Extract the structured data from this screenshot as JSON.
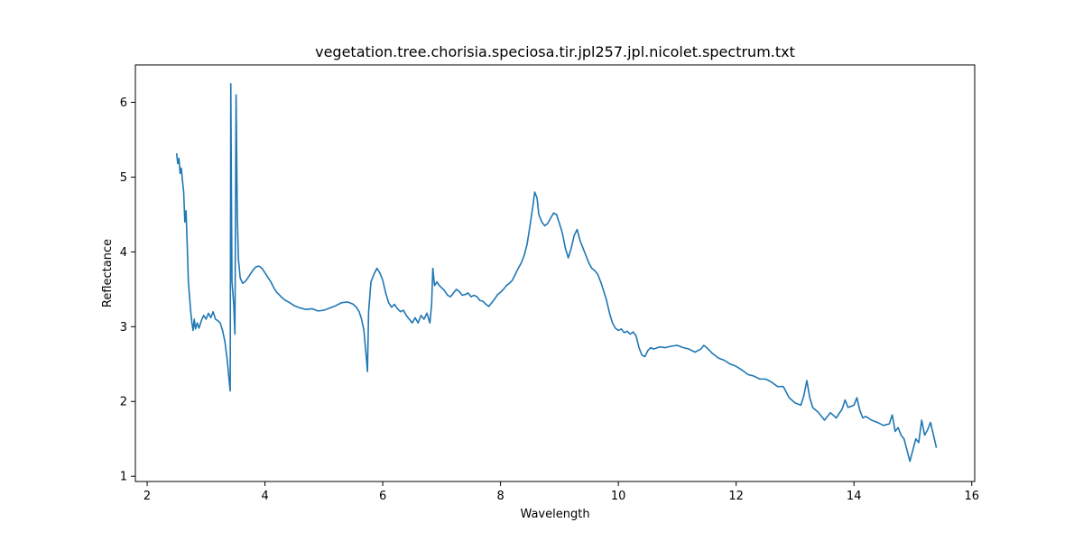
{
  "chart_data": {
    "type": "line",
    "title": "vegetation.tree.chorisia.speciosa.tir.jpl257.jpl.nicolet.spectrum.txt",
    "xlabel": "Wavelength",
    "ylabel": "Reflectance",
    "xlim": [
      1.8,
      16.05
    ],
    "ylim": [
      0.93,
      6.5
    ],
    "x_ticks": [
      2,
      4,
      6,
      8,
      10,
      12,
      14,
      16
    ],
    "y_ticks": [
      1,
      2,
      3,
      4,
      5,
      6
    ],
    "grid": false,
    "line_color": "#1f77b4",
    "series": [
      {
        "points": [
          [
            2.5,
            5.32
          ],
          [
            2.52,
            5.18
          ],
          [
            2.54,
            5.25
          ],
          [
            2.56,
            5.05
          ],
          [
            2.58,
            5.12
          ],
          [
            2.6,
            4.95
          ],
          [
            2.62,
            4.8
          ],
          [
            2.64,
            4.4
          ],
          [
            2.66,
            4.55
          ],
          [
            2.68,
            4.1
          ],
          [
            2.7,
            3.6
          ],
          [
            2.72,
            3.4
          ],
          [
            2.74,
            3.2
          ],
          [
            2.76,
            3.05
          ],
          [
            2.78,
            2.95
          ],
          [
            2.8,
            3.1
          ],
          [
            2.82,
            2.97
          ],
          [
            2.85,
            3.05
          ],
          [
            2.88,
            2.98
          ],
          [
            2.92,
            3.08
          ],
          [
            2.96,
            3.15
          ],
          [
            3.0,
            3.1
          ],
          [
            3.04,
            3.18
          ],
          [
            3.08,
            3.12
          ],
          [
            3.12,
            3.2
          ],
          [
            3.16,
            3.1
          ],
          [
            3.2,
            3.08
          ],
          [
            3.24,
            3.05
          ],
          [
            3.28,
            2.95
          ],
          [
            3.32,
            2.8
          ],
          [
            3.36,
            2.55
          ],
          [
            3.39,
            2.3
          ],
          [
            3.41,
            2.14
          ],
          [
            3.42,
            6.25
          ],
          [
            3.44,
            3.6
          ],
          [
            3.47,
            3.3
          ],
          [
            3.49,
            2.9
          ],
          [
            3.51,
            6.1
          ],
          [
            3.53,
            4.5
          ],
          [
            3.55,
            3.9
          ],
          [
            3.58,
            3.65
          ],
          [
            3.62,
            3.58
          ],
          [
            3.66,
            3.6
          ],
          [
            3.7,
            3.64
          ],
          [
            3.75,
            3.7
          ],
          [
            3.8,
            3.76
          ],
          [
            3.85,
            3.8
          ],
          [
            3.9,
            3.81
          ],
          [
            3.95,
            3.78
          ],
          [
            4.0,
            3.72
          ],
          [
            4.05,
            3.66
          ],
          [
            4.1,
            3.6
          ],
          [
            4.15,
            3.52
          ],
          [
            4.2,
            3.46
          ],
          [
            4.25,
            3.42
          ],
          [
            4.3,
            3.38
          ],
          [
            4.35,
            3.35
          ],
          [
            4.4,
            3.33
          ],
          [
            4.5,
            3.28
          ],
          [
            4.6,
            3.25
          ],
          [
            4.7,
            3.23
          ],
          [
            4.8,
            3.24
          ],
          [
            4.9,
            3.21
          ],
          [
            5.0,
            3.22
          ],
          [
            5.1,
            3.25
          ],
          [
            5.2,
            3.28
          ],
          [
            5.3,
            3.32
          ],
          [
            5.4,
            3.33
          ],
          [
            5.5,
            3.3
          ],
          [
            5.55,
            3.26
          ],
          [
            5.6,
            3.2
          ],
          [
            5.64,
            3.1
          ],
          [
            5.68,
            2.95
          ],
          [
            5.72,
            2.6
          ],
          [
            5.74,
            2.4
          ],
          [
            5.76,
            3.2
          ],
          [
            5.8,
            3.6
          ],
          [
            5.85,
            3.7
          ],
          [
            5.9,
            3.78
          ],
          [
            5.95,
            3.72
          ],
          [
            6.0,
            3.62
          ],
          [
            6.05,
            3.45
          ],
          [
            6.1,
            3.32
          ],
          [
            6.15,
            3.26
          ],
          [
            6.2,
            3.3
          ],
          [
            6.25,
            3.24
          ],
          [
            6.3,
            3.2
          ],
          [
            6.35,
            3.22
          ],
          [
            6.4,
            3.15
          ],
          [
            6.45,
            3.1
          ],
          [
            6.5,
            3.05
          ],
          [
            6.55,
            3.12
          ],
          [
            6.6,
            3.05
          ],
          [
            6.65,
            3.15
          ],
          [
            6.7,
            3.1
          ],
          [
            6.75,
            3.18
          ],
          [
            6.8,
            3.05
          ],
          [
            6.83,
            3.3
          ],
          [
            6.85,
            3.78
          ],
          [
            6.88,
            3.55
          ],
          [
            6.92,
            3.6
          ],
          [
            6.96,
            3.55
          ],
          [
            7.0,
            3.52
          ],
          [
            7.05,
            3.48
          ],
          [
            7.1,
            3.42
          ],
          [
            7.15,
            3.4
          ],
          [
            7.2,
            3.45
          ],
          [
            7.25,
            3.5
          ],
          [
            7.3,
            3.47
          ],
          [
            7.35,
            3.42
          ],
          [
            7.4,
            3.43
          ],
          [
            7.45,
            3.45
          ],
          [
            7.5,
            3.4
          ],
          [
            7.55,
            3.42
          ],
          [
            7.6,
            3.4
          ],
          [
            7.65,
            3.35
          ],
          [
            7.7,
            3.34
          ],
          [
            7.75,
            3.3
          ],
          [
            7.8,
            3.27
          ],
          [
            7.85,
            3.32
          ],
          [
            7.9,
            3.37
          ],
          [
            7.95,
            3.43
          ],
          [
            8.0,
            3.46
          ],
          [
            8.05,
            3.5
          ],
          [
            8.1,
            3.55
          ],
          [
            8.15,
            3.58
          ],
          [
            8.2,
            3.62
          ],
          [
            8.25,
            3.7
          ],
          [
            8.3,
            3.78
          ],
          [
            8.35,
            3.85
          ],
          [
            8.4,
            3.95
          ],
          [
            8.45,
            4.1
          ],
          [
            8.5,
            4.35
          ],
          [
            8.55,
            4.62
          ],
          [
            8.58,
            4.8
          ],
          [
            8.62,
            4.72
          ],
          [
            8.65,
            4.5
          ],
          [
            8.7,
            4.4
          ],
          [
            8.75,
            4.35
          ],
          [
            8.8,
            4.38
          ],
          [
            8.85,
            4.45
          ],
          [
            8.9,
            4.52
          ],
          [
            8.95,
            4.5
          ],
          [
            9.0,
            4.38
          ],
          [
            9.05,
            4.25
          ],
          [
            9.1,
            4.05
          ],
          [
            9.15,
            3.92
          ],
          [
            9.2,
            4.05
          ],
          [
            9.25,
            4.22
          ],
          [
            9.3,
            4.3
          ],
          [
            9.35,
            4.15
          ],
          [
            9.4,
            4.05
          ],
          [
            9.45,
            3.95
          ],
          [
            9.5,
            3.85
          ],
          [
            9.55,
            3.78
          ],
          [
            9.6,
            3.75
          ],
          [
            9.65,
            3.7
          ],
          [
            9.7,
            3.6
          ],
          [
            9.75,
            3.48
          ],
          [
            9.8,
            3.35
          ],
          [
            9.85,
            3.18
          ],
          [
            9.9,
            3.05
          ],
          [
            9.95,
            2.98
          ],
          [
            10.0,
            2.95
          ],
          [
            10.05,
            2.97
          ],
          [
            10.1,
            2.92
          ],
          [
            10.15,
            2.94
          ],
          [
            10.2,
            2.9
          ],
          [
            10.25,
            2.93
          ],
          [
            10.3,
            2.88
          ],
          [
            10.35,
            2.72
          ],
          [
            10.4,
            2.62
          ],
          [
            10.45,
            2.6
          ],
          [
            10.5,
            2.68
          ],
          [
            10.55,
            2.72
          ],
          [
            10.6,
            2.7
          ],
          [
            10.7,
            2.73
          ],
          [
            10.8,
            2.72
          ],
          [
            10.9,
            2.74
          ],
          [
            11.0,
            2.75
          ],
          [
            11.1,
            2.72
          ],
          [
            11.2,
            2.7
          ],
          [
            11.3,
            2.66
          ],
          [
            11.4,
            2.7
          ],
          [
            11.45,
            2.75
          ],
          [
            11.5,
            2.72
          ],
          [
            11.6,
            2.64
          ],
          [
            11.7,
            2.58
          ],
          [
            11.8,
            2.55
          ],
          [
            11.9,
            2.5
          ],
          [
            12.0,
            2.47
          ],
          [
            12.1,
            2.42
          ],
          [
            12.2,
            2.36
          ],
          [
            12.3,
            2.34
          ],
          [
            12.4,
            2.3
          ],
          [
            12.5,
            2.3
          ],
          [
            12.6,
            2.26
          ],
          [
            12.7,
            2.2
          ],
          [
            12.8,
            2.2
          ],
          [
            12.9,
            2.05
          ],
          [
            13.0,
            1.98
          ],
          [
            13.1,
            1.95
          ],
          [
            13.15,
            2.08
          ],
          [
            13.2,
            2.28
          ],
          [
            13.25,
            2.05
          ],
          [
            13.3,
            1.92
          ],
          [
            13.4,
            1.85
          ],
          [
            13.5,
            1.75
          ],
          [
            13.6,
            1.85
          ],
          [
            13.7,
            1.78
          ],
          [
            13.8,
            1.9
          ],
          [
            13.85,
            2.02
          ],
          [
            13.9,
            1.92
          ],
          [
            14.0,
            1.95
          ],
          [
            14.05,
            2.05
          ],
          [
            14.1,
            1.88
          ],
          [
            14.15,
            1.78
          ],
          [
            14.2,
            1.8
          ],
          [
            14.3,
            1.75
          ],
          [
            14.4,
            1.72
          ],
          [
            14.5,
            1.68
          ],
          [
            14.6,
            1.7
          ],
          [
            14.65,
            1.82
          ],
          [
            14.7,
            1.6
          ],
          [
            14.75,
            1.65
          ],
          [
            14.8,
            1.55
          ],
          [
            14.85,
            1.5
          ],
          [
            14.9,
            1.35
          ],
          [
            14.95,
            1.2
          ],
          [
            15.0,
            1.35
          ],
          [
            15.05,
            1.5
          ],
          [
            15.1,
            1.45
          ],
          [
            15.15,
            1.75
          ],
          [
            15.2,
            1.55
          ],
          [
            15.25,
            1.62
          ],
          [
            15.3,
            1.72
          ],
          [
            15.35,
            1.55
          ],
          [
            15.4,
            1.38
          ]
        ]
      }
    ]
  }
}
